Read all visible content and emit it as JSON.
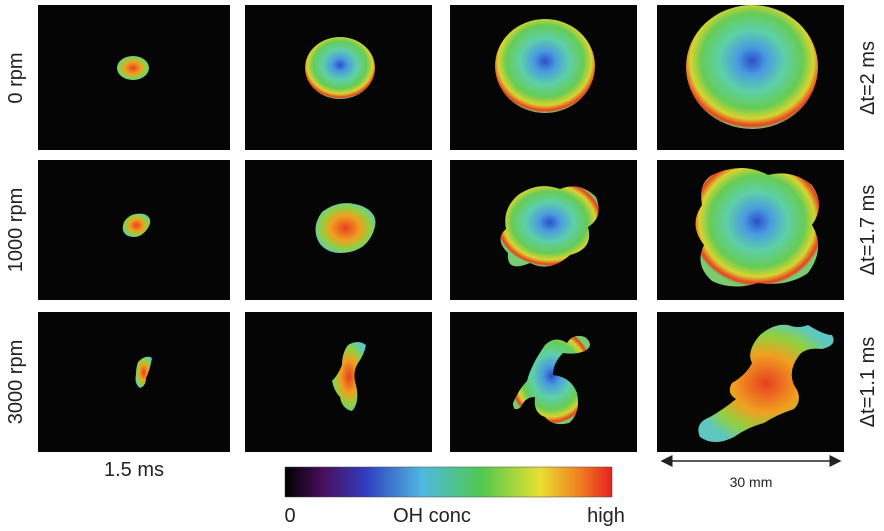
{
  "rows": [
    {
      "label": "0 rpm",
      "interval": "Δt=2 ms"
    },
    {
      "label": "1000 rpm",
      "interval": "Δt=1.7 ms"
    },
    {
      "label": "3000 rpm",
      "interval": "Δt=1.1 ms"
    }
  ],
  "time_label": "1.5 ms",
  "colorbar": {
    "min_label": "0",
    "title": "OH conc",
    "max_label": "high"
  },
  "scale_bar": "30 mm"
}
